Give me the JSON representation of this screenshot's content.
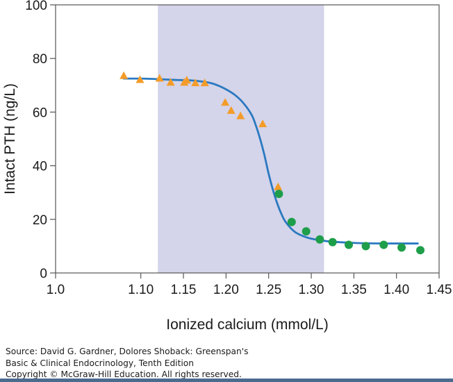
{
  "chart_data": {
    "type": "scatter",
    "xlabel": "Ionized calcium (mmol/L)",
    "ylabel": "Intact PTH (ng/L)",
    "xlim": [
      1.0,
      1.45
    ],
    "ylim": [
      0,
      100
    ],
    "xticks": [
      "1.0",
      "1.10",
      "1.15",
      "1.20",
      "1.25",
      "1.30",
      "1.35",
      "1.40",
      "1.45"
    ],
    "xtick_values": [
      1.0,
      1.1,
      1.15,
      1.2,
      1.25,
      1.3,
      1.35,
      1.4,
      1.45
    ],
    "yticks": [
      "0",
      "20",
      "40",
      "60",
      "80",
      "100"
    ],
    "ytick_values": [
      0,
      20,
      40,
      60,
      80,
      100
    ],
    "shaded_band": {
      "x": [
        1.12,
        1.315
      ],
      "color": "#d4d4ea"
    },
    "series": [
      {
        "marker": "triangle",
        "color": "#f39c2a",
        "points": [
          [
            1.08,
            73.5
          ],
          [
            1.099,
            72.0
          ],
          [
            1.122,
            72.5
          ],
          [
            1.135,
            71.0
          ],
          [
            1.151,
            71.0
          ],
          [
            1.154,
            71.8
          ],
          [
            1.164,
            70.8
          ],
          [
            1.175,
            70.8
          ],
          [
            1.199,
            63.5
          ],
          [
            1.206,
            60.5
          ],
          [
            1.217,
            58.5
          ],
          [
            1.243,
            55.5
          ],
          [
            1.261,
            32.0
          ]
        ]
      },
      {
        "marker": "circle",
        "color": "#1e9e4a",
        "points": [
          [
            1.262,
            29.5
          ],
          [
            1.277,
            19.0
          ],
          [
            1.294,
            15.5
          ],
          [
            1.31,
            12.5
          ],
          [
            1.325,
            11.5
          ],
          [
            1.344,
            10.5
          ],
          [
            1.364,
            10.0
          ],
          [
            1.385,
            10.5
          ],
          [
            1.406,
            9.5
          ],
          [
            1.428,
            8.5
          ]
        ]
      }
    ],
    "fit_curve": {
      "color": "#2a79c0",
      "points": [
        [
          1.08,
          72.5
        ],
        [
          1.1,
          72.5
        ],
        [
          1.12,
          72.3
        ],
        [
          1.14,
          72.0
        ],
        [
          1.16,
          71.8
        ],
        [
          1.18,
          71.0
        ],
        [
          1.19,
          70.0
        ],
        [
          1.2,
          68.5
        ],
        [
          1.21,
          66.5
        ],
        [
          1.22,
          63.5
        ],
        [
          1.23,
          59.0
        ],
        [
          1.235,
          55.0
        ],
        [
          1.24,
          50.0
        ],
        [
          1.245,
          44.0
        ],
        [
          1.25,
          37.0
        ],
        [
          1.255,
          31.0
        ],
        [
          1.26,
          26.0
        ],
        [
          1.265,
          22.0
        ],
        [
          1.27,
          19.0
        ],
        [
          1.28,
          15.5
        ],
        [
          1.29,
          13.8
        ],
        [
          1.3,
          12.8
        ],
        [
          1.32,
          11.8
        ],
        [
          1.35,
          11.2
        ],
        [
          1.38,
          11.0
        ],
        [
          1.4,
          11.0
        ],
        [
          1.425,
          11.0
        ]
      ]
    }
  },
  "source": {
    "line1": "Source: David G. Gardner, Dolores Shoback: Greenspan's",
    "line2": "Basic & Clinical Endocrinology, Tenth Edition",
    "line3": "Copyright © McGraw-Hill Education. All rights reserved."
  }
}
